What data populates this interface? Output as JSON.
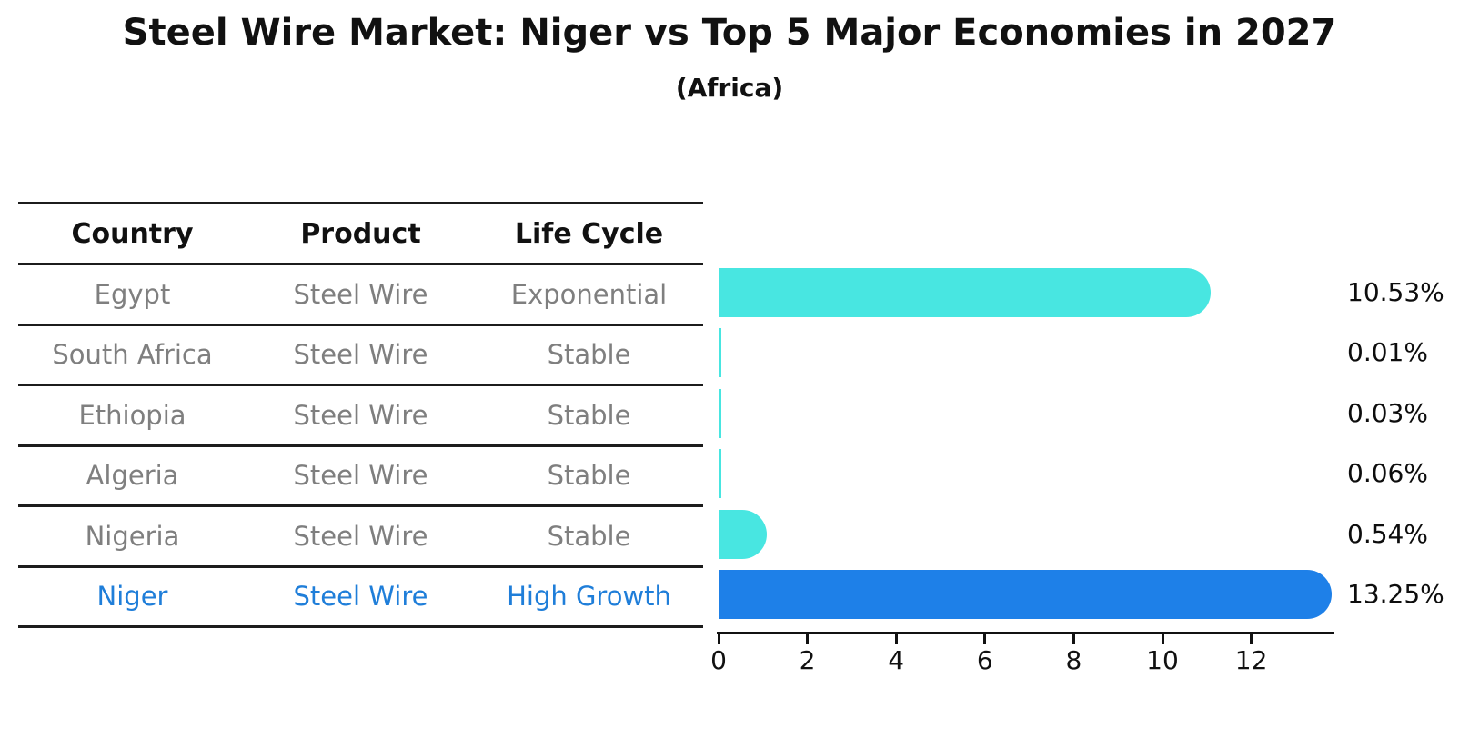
{
  "title": "Steel Wire Market: Niger vs Top 5 Major Economies in 2027",
  "subtitle": "(Africa)",
  "table": {
    "headers": [
      "Country",
      "Product",
      "Life Cycle"
    ],
    "rows": [
      {
        "country": "Egypt",
        "product": "Steel Wire",
        "life_cycle": "Exponential",
        "highlight": false
      },
      {
        "country": "South Africa",
        "product": "Steel Wire",
        "life_cycle": "Stable",
        "highlight": false
      },
      {
        "country": "Ethiopia",
        "product": "Steel Wire",
        "life_cycle": "Stable",
        "highlight": false
      },
      {
        "country": "Algeria",
        "product": "Steel Wire",
        "life_cycle": "Stable",
        "highlight": false
      },
      {
        "country": "Nigeria",
        "product": "Steel Wire",
        "life_cycle": "Stable",
        "highlight": false
      },
      {
        "country": "Niger",
        "product": "Steel Wire",
        "life_cycle": "High Growth",
        "highlight": true
      }
    ]
  },
  "chart_data": {
    "type": "bar",
    "orientation": "horizontal",
    "title": "Steel Wire Market: Niger vs Top 5 Major Economies in 2027",
    "subtitle": "(Africa)",
    "categories": [
      "Egypt",
      "South Africa",
      "Ethiopia",
      "Algeria",
      "Nigeria",
      "Niger"
    ],
    "values": [
      10.53,
      0.01,
      0.03,
      0.06,
      0.54,
      13.25
    ],
    "value_labels": [
      "10.53%",
      "0.01%",
      "0.03%",
      "0.06%",
      "0.54%",
      "13.25%"
    ],
    "xticks": [
      0,
      2,
      4,
      6,
      8,
      10,
      12
    ],
    "xlim": [
      0,
      13.87
    ],
    "grid": false,
    "legend": "none",
    "highlight_index": 5,
    "highlight_style": "dotted-edge"
  },
  "colors": {
    "bar_cyan": "#48E6E1",
    "bar_blue": "#1E80E8",
    "highlight_text": "#1F7ED9",
    "table_text": "#7f7f7f",
    "header_text": "#111111",
    "rule": "#1c1c1c"
  }
}
